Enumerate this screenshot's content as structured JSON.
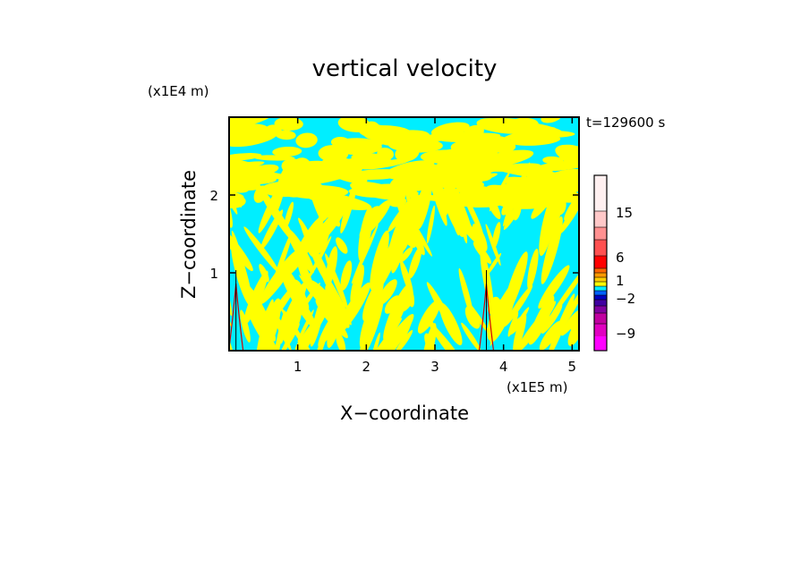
{
  "chart_data": {
    "type": "heatmap",
    "title": "vertical velocity",
    "xlabel": "X−coordinate",
    "ylabel": "Z−coordinate",
    "x_unit": "(x1E5 m)",
    "y_unit": "(x1E4 m)",
    "time_label": "t=129600 s",
    "xlim": [
      0,
      5.1
    ],
    "ylim": [
      0,
      3.0
    ],
    "x_ticks": [
      1,
      2,
      3,
      4,
      5
    ],
    "y_ticks": [
      1,
      2
    ],
    "colorbar": {
      "levels": [
        -12,
        -9,
        -6,
        -4,
        -2,
        -1,
        -0.5,
        0,
        0.5,
        1,
        2,
        4,
        6,
        10,
        15,
        20,
        25
      ],
      "colors": [
        "#ff00ff",
        "#e000c0",
        "#c000a0",
        "#8000a0",
        "#4000a0",
        "#0000c0",
        "#0060ff",
        "#00eeff",
        "#ffff00",
        "#ffcc00",
        "#ff9900",
        "#ff6600",
        "#ff0000",
        "#ff5050",
        "#ff9090",
        "#ffc8c8",
        "#fff0f0"
      ],
      "tick_labels": [
        "15",
        "6",
        "1",
        "−2",
        "−9"
      ]
    },
    "dominant_fields": {
      "positive_color": "#ffff00",
      "negative_color": "#00eeff"
    },
    "mountain_peaks_x": [
      0.1,
      3.75
    ]
  }
}
